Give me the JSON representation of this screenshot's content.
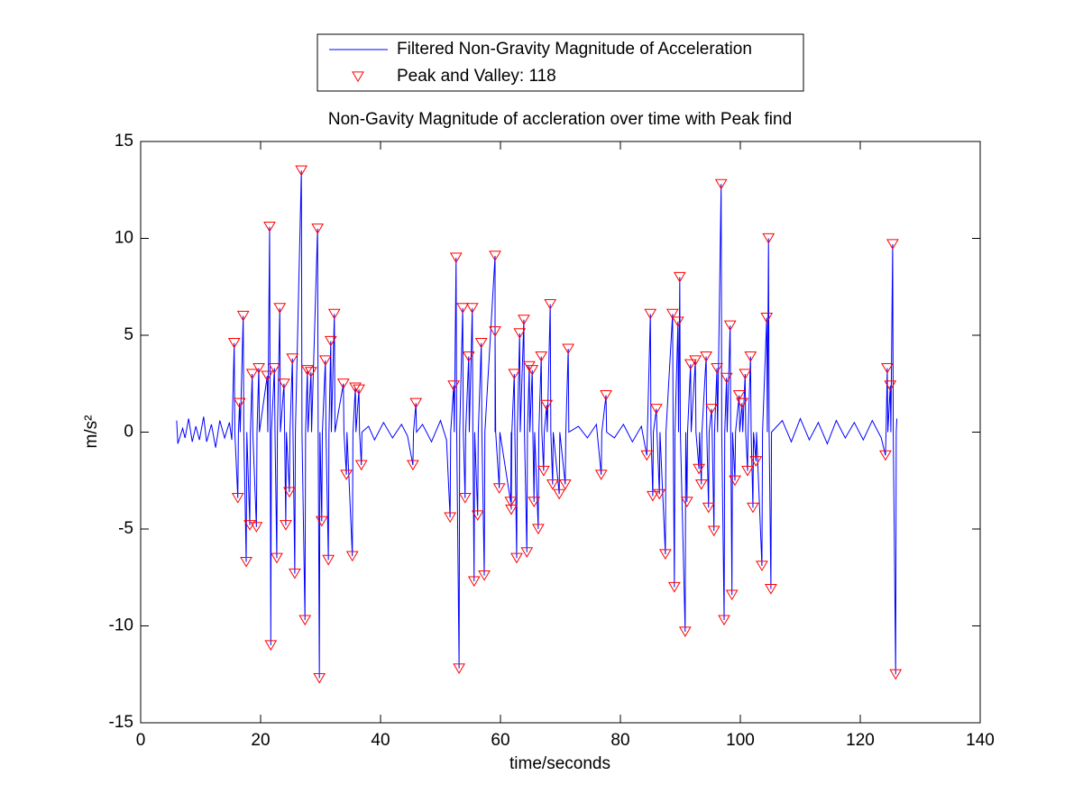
{
  "chart_data": {
    "type": "line",
    "title": "Non-Gavity Magnitude of accleration over time with Peak find",
    "x_label": "time/seconds",
    "y_label": "m/s²",
    "xlim": [
      0,
      140
    ],
    "xticks": [
      0,
      20,
      40,
      60,
      80,
      100,
      120,
      140
    ],
    "ylim": [
      -15,
      15
    ],
    "yticks": [
      -15,
      -10,
      -5,
      0,
      5,
      10,
      15
    ],
    "grid": false,
    "legend_position": "top",
    "series": [
      {
        "name": "Filtered Non-Gravity Magnitude of Acceleration",
        "type": "line",
        "color": "#0000ff",
        "x": [
          6,
          6.2,
          7,
          7.4,
          8,
          8.6,
          9.2,
          9.8,
          10.5,
          11,
          11.8,
          12.5,
          13.2,
          14,
          14.8,
          15.2,
          15.6,
          15.7,
          16.2,
          16.3,
          16.5,
          16.6,
          17.1,
          17.2,
          17.6,
          17.7,
          18.2,
          18.3,
          18.6,
          18.7,
          19.3,
          19.4,
          19.7,
          19.8,
          21.1,
          21.2,
          21.5,
          21.6,
          21.7,
          21.8,
          22.3,
          22.4,
          22.7,
          22.8,
          23.2,
          23.3,
          23.9,
          24,
          24.2,
          24.3,
          24.8,
          24.9,
          25.3,
          25.4,
          25.7,
          25.8,
          26.8,
          26.9,
          27.4,
          27.5,
          27.8,
          27.9,
          28.4,
          28.5,
          29.5,
          29.6,
          29.8,
          29.9,
          30.2,
          30.3,
          30.8,
          30.9,
          31.3,
          31.4,
          31.7,
          31.8,
          32.3,
          32.4,
          33.8,
          33.9,
          34.3,
          34.4,
          35.3,
          35.4,
          35.8,
          35.9,
          36.4,
          36.5,
          36.8,
          36.9,
          38,
          39,
          40.5,
          42,
          43.5,
          44.5,
          45.4,
          45.5,
          45.9,
          46,
          47,
          48.5,
          50,
          51,
          51.6,
          51.7,
          52.2,
          52.3,
          52.6,
          52.7,
          53.1,
          53.2,
          53.7,
          53.8,
          54.1,
          54.2,
          54.7,
          54.8,
          55.3,
          55.4,
          55.6,
          55.7,
          56.2,
          56.3,
          56.8,
          56.9,
          57.3,
          57.4,
          59.1,
          59.1,
          59.1,
          59.2,
          59.8,
          59.9,
          61.7,
          61.8,
          61.8,
          61.9,
          62.3,
          62.4,
          62.7,
          62.8,
          63.2,
          63.3,
          63.9,
          64,
          64.4,
          64.5,
          64.8,
          64.9,
          65.3,
          65.4,
          65.6,
          65.7,
          66.3,
          66.4,
          66.8,
          66.9,
          67.2,
          67.3,
          67.7,
          67.8,
          68.3,
          68.4,
          68.7,
          68.8,
          69.8,
          69.9,
          70.8,
          70.9,
          71.3,
          71.4,
          73,
          74.5,
          76,
          76.8,
          76.9,
          77.6,
          77.7,
          79,
          80.5,
          82,
          83.5,
          84.4,
          84.5,
          85,
          85.1,
          85.4,
          85.5,
          86,
          86.1,
          86.5,
          86.6,
          87.5,
          87.6,
          88.7,
          88.8,
          89,
          89.1,
          89.6,
          89.7,
          89.9,
          90,
          90.8,
          90.9,
          91.1,
          91.2,
          91.7,
          91.8,
          92.5,
          92.6,
          93.1,
          93.2,
          93.5,
          93.6,
          94.3,
          94.4,
          94.7,
          94.8,
          95.2,
          95.3,
          95.6,
          95.7,
          96.1,
          96.2,
          96.8,
          96.9,
          97.3,
          97.4,
          97.7,
          97.8,
          98.3,
          98.4,
          98.6,
          98.7,
          99.1,
          99.2,
          99.8,
          99.9,
          100.3,
          100.4,
          100.8,
          100.9,
          101.2,
          101.3,
          101.7,
          101.8,
          102.1,
          102.2,
          102.6,
          102.7,
          103.6,
          103.7,
          104.4,
          104.5,
          104.7,
          104.8,
          105.1,
          105.2,
          107,
          108.5,
          110,
          111.5,
          113,
          114.5,
          116,
          117.5,
          119,
          120.5,
          122,
          123.5,
          124.2,
          124.3,
          124.5,
          124.6,
          125,
          125.1,
          125.4,
          125.5,
          125.9,
          126,
          126.1
        ],
        "values": [
          0.6,
          -0.6,
          0.2,
          -0.3,
          0.7,
          -0.5,
          0.3,
          -0.4,
          0.8,
          -0.5,
          0.4,
          -0.8,
          0.6,
          -0.3,
          0.5,
          -0.4,
          4.6,
          0,
          -3.4,
          0,
          1.5,
          0,
          6.0,
          0,
          -6.7,
          0,
          -4.8,
          0,
          3.0,
          0,
          -4.9,
          0,
          3.3,
          0,
          2.9,
          0,
          10.6,
          0,
          -11.0,
          0,
          3.3,
          0,
          -6.5,
          0,
          6.4,
          0,
          2.5,
          0,
          -4.8,
          0,
          -3.1,
          0,
          3.8,
          0,
          -7.3,
          0,
          13.5,
          0,
          -9.7,
          0,
          3.2,
          0,
          3.1,
          0,
          10.5,
          0,
          -12.7,
          0,
          -4.6,
          0,
          3.7,
          0,
          -6.6,
          0,
          4.7,
          0,
          6.1,
          0,
          2.5,
          0,
          -2.2,
          0,
          -6.4,
          0,
          2.3,
          0,
          2.2,
          0,
          -1.7,
          0,
          0.3,
          -0.4,
          0.5,
          -0.3,
          0.4,
          -0.2,
          -1.7,
          0,
          1.5,
          0,
          0.4,
          -0.5,
          0.6,
          -0.4,
          -4.4,
          0,
          2.4,
          0,
          9.0,
          0,
          -12.2,
          0,
          6.4,
          0,
          -3.4,
          0,
          3.9,
          0,
          6.4,
          0,
          -7.7,
          0,
          -4.3,
          0,
          4.6,
          0,
          -7.4,
          0,
          9.1,
          0,
          5.2,
          0,
          -2.9,
          0,
          -3.6,
          0,
          -4.0,
          0,
          3.0,
          0,
          -6.5,
          0,
          5.1,
          0,
          5.8,
          0,
          -6.2,
          0,
          3.4,
          0,
          3.2,
          0,
          -3.6,
          0,
          -5.0,
          0,
          3.9,
          0,
          -2.0,
          0,
          1.4,
          0,
          6.6,
          0,
          -2.7,
          0,
          -3.2,
          0,
          -2.7,
          0,
          4.3,
          0,
          0.3,
          -0.3,
          0.4,
          -2.2,
          0,
          1.9,
          0,
          -0.3,
          0.4,
          -0.5,
          0.3,
          -1.2,
          0,
          6.1,
          0,
          -3.3,
          0,
          1.2,
          0,
          -3.2,
          0,
          -6.3,
          0,
          6.1,
          0,
          -8.0,
          0,
          5.7,
          0,
          8.0,
          0,
          -10.3,
          0,
          -3.6,
          0,
          3.5,
          0,
          3.7,
          0,
          -1.9,
          0,
          -2.7,
          0,
          3.9,
          0,
          -3.9,
          0,
          1.2,
          0,
          -5.1,
          0,
          3.3,
          0,
          12.8,
          0,
          -9.7,
          0,
          2.8,
          0,
          5.5,
          0,
          -8.4,
          0,
          -2.5,
          0,
          1.9,
          0,
          1.5,
          0,
          3.0,
          0,
          -2.0,
          0,
          3.9,
          0,
          -3.9,
          0,
          -1.5,
          0,
          -6.9,
          0,
          5.9,
          0,
          10.0,
          0,
          -8.1,
          0,
          0.6,
          -0.5,
          0.7,
          -0.4,
          0.5,
          -0.6,
          0.6,
          -0.3,
          0.5,
          -0.4,
          0.6,
          -0.3,
          -1.2,
          0,
          3.3,
          0,
          2.4,
          0,
          9.7,
          0,
          -12.5,
          0,
          0.7
        ]
      },
      {
        "name": "Peak and Valley: 118",
        "type": "scatter",
        "marker": "triangle-down",
        "color": "#ff0000",
        "x": [
          15.6,
          16.2,
          16.5,
          17.1,
          17.6,
          18.2,
          18.6,
          19.3,
          19.7,
          21.1,
          21.5,
          21.7,
          22.3,
          22.7,
          23.2,
          23.9,
          24.2,
          24.8,
          25.3,
          25.7,
          26.8,
          27.4,
          27.8,
          28.4,
          29.5,
          29.8,
          30.2,
          30.8,
          31.3,
          31.7,
          32.3,
          33.8,
          34.3,
          35.3,
          35.8,
          36.4,
          36.8,
          45.4,
          45.9,
          51.6,
          52.2,
          52.6,
          53.1,
          53.7,
          54.1,
          54.7,
          55.3,
          55.6,
          56.2,
          56.8,
          57.3,
          59.1,
          59.1,
          59.8,
          61.7,
          61.8,
          62.3,
          62.7,
          63.2,
          63.9,
          64.4,
          64.8,
          65.3,
          65.6,
          66.3,
          66.8,
          67.2,
          67.7,
          68.3,
          68.7,
          69.8,
          70.8,
          71.3,
          76.8,
          77.6,
          84.4,
          85.0,
          85.4,
          86.0,
          86.5,
          87.5,
          88.7,
          89.0,
          89.6,
          89.9,
          90.8,
          91.1,
          91.7,
          92.5,
          93.1,
          93.5,
          94.3,
          94.7,
          95.2,
          95.6,
          96.1,
          96.8,
          97.3,
          97.7,
          98.3,
          98.6,
          99.1,
          99.8,
          100.3,
          100.8,
          101.2,
          101.7,
          102.1,
          102.6,
          103.6,
          104.4,
          104.7,
          105.1,
          124.2,
          124.5,
          125.0,
          125.4,
          125.9
        ],
        "values": [
          4.6,
          -3.4,
          1.5,
          6.0,
          -6.7,
          -4.8,
          3.0,
          -4.9,
          3.3,
          2.9,
          10.6,
          -11.0,
          3.3,
          -6.5,
          6.4,
          2.5,
          -4.8,
          -3.1,
          3.8,
          -7.3,
          13.5,
          -9.7,
          3.2,
          3.1,
          10.5,
          -12.7,
          -4.6,
          3.7,
          -6.6,
          4.7,
          6.1,
          2.5,
          -2.2,
          -6.4,
          2.3,
          2.2,
          -1.7,
          -1.7,
          1.5,
          -4.4,
          2.4,
          9.0,
          -12.2,
          6.4,
          -3.4,
          3.9,
          6.4,
          -7.7,
          -4.3,
          4.6,
          -7.4,
          9.1,
          5.2,
          -2.9,
          -3.6,
          -4.0,
          3.0,
          -6.5,
          5.1,
          5.8,
          -6.2,
          3.4,
          3.2,
          -3.6,
          -5.0,
          3.9,
          -2.0,
          1.4,
          6.6,
          -2.7,
          -3.2,
          -2.7,
          4.3,
          -2.2,
          1.9,
          -1.2,
          6.1,
          -3.3,
          1.2,
          -3.2,
          -6.3,
          6.1,
          -8.0,
          5.7,
          8.0,
          -10.3,
          -3.6,
          3.5,
          3.7,
          -1.9,
          -2.7,
          3.9,
          -3.9,
          1.2,
          -5.1,
          3.3,
          12.8,
          -9.7,
          2.8,
          5.5,
          -8.4,
          -2.5,
          1.9,
          1.5,
          3.0,
          -2.0,
          3.9,
          -3.9,
          -1.5,
          -6.9,
          5.9,
          10.0,
          -8.1,
          -1.2,
          3.3,
          2.4,
          9.7,
          -12.5
        ]
      }
    ]
  }
}
